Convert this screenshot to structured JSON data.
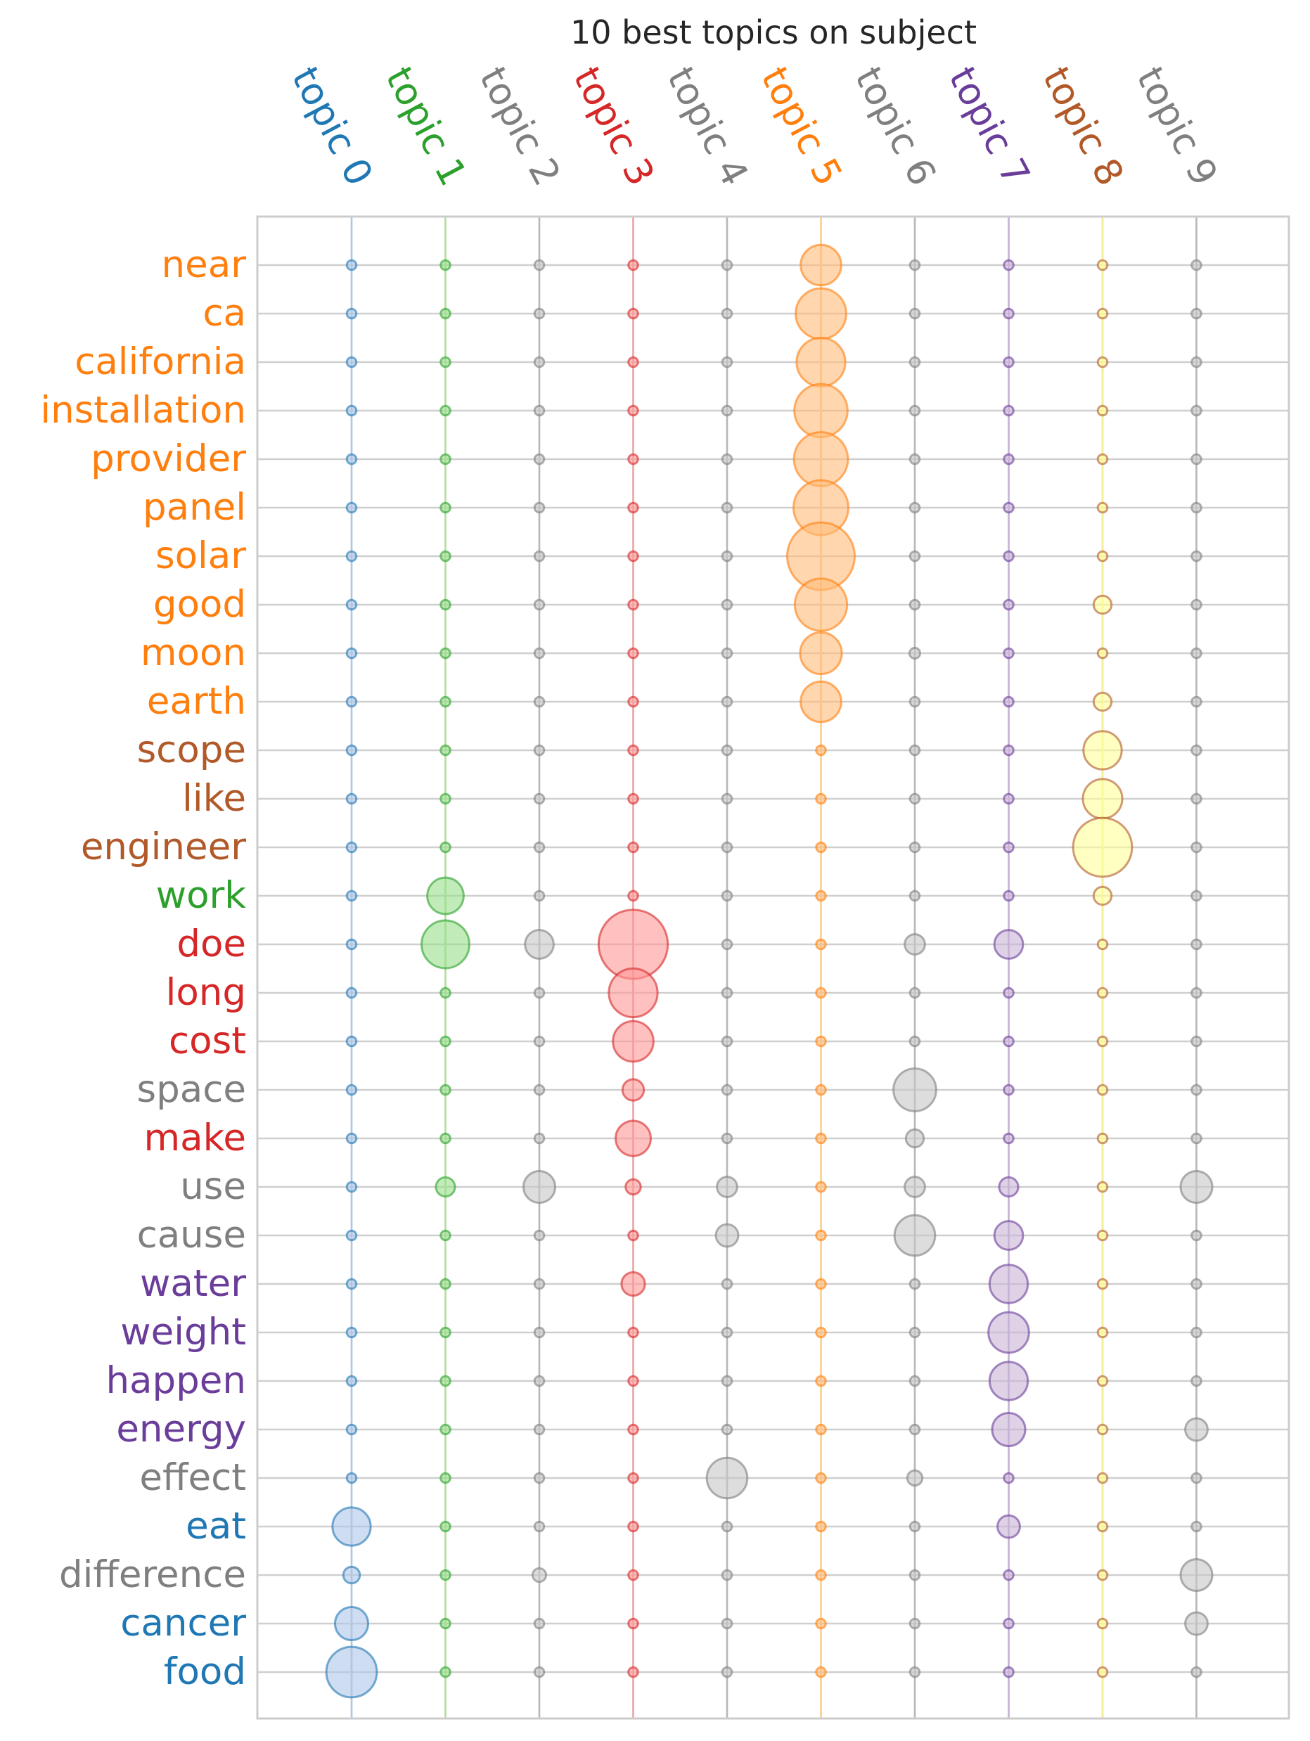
{
  "chart_data": {
    "type": "scatter",
    "title": "10 best topics on subject",
    "topics": [
      {
        "label": "topic 0",
        "color": "#1f77b4",
        "circle_color": "#aec7e8",
        "line_color": "#aec7e8"
      },
      {
        "label": "topic 1",
        "color": "#2ca02c",
        "circle_color": "#98df8a",
        "line_color": "#b2e09a"
      },
      {
        "label": "topic 2",
        "color": "#7f7f7f",
        "circle_color": "#c7c7c7",
        "line_color": "#b8b8b8"
      },
      {
        "label": "topic 3",
        "color": "#d62728",
        "circle_color": "#ff9896",
        "line_color": "#f2a4a4"
      },
      {
        "label": "topic 4",
        "color": "#7f7f7f",
        "circle_color": "#c7c7c7",
        "line_color": "#b8b8b8"
      },
      {
        "label": "topic 5",
        "color": "#ff7f0e",
        "circle_color": "#ffbb78",
        "line_color": "#ffcf8f"
      },
      {
        "label": "topic 6",
        "color": "#7f7f7f",
        "circle_color": "#c7c7c7",
        "line_color": "#b8b8b8"
      },
      {
        "label": "topic 7",
        "color": "#6a3d9a",
        "circle_color": "#cab2d6",
        "line_color": "#c4b3d6"
      },
      {
        "label": "topic 8",
        "color": "#b15928",
        "circle_color": "#ffff99",
        "line_color": "#f2ef99"
      },
      {
        "label": "topic 9",
        "color": "#7f7f7f",
        "circle_color": "#c7c7c7",
        "line_color": "#b8b8b8"
      }
    ],
    "words": [
      {
        "word": "near",
        "color": "#ff7f0e",
        "values": [
          0.02,
          0.02,
          0.02,
          0.02,
          0.02,
          0.36,
          0.02,
          0.02,
          0.02,
          0.02
        ]
      },
      {
        "word": "ca",
        "color": "#ff7f0e",
        "values": [
          0.02,
          0.02,
          0.02,
          0.02,
          0.02,
          0.56,
          0.02,
          0.02,
          0.02,
          0.02
        ]
      },
      {
        "word": "california",
        "color": "#ff7f0e",
        "values": [
          0.02,
          0.02,
          0.02,
          0.02,
          0.02,
          0.52,
          0.02,
          0.02,
          0.02,
          0.02
        ]
      },
      {
        "word": "installation",
        "color": "#ff7f0e",
        "values": [
          0.02,
          0.02,
          0.02,
          0.02,
          0.02,
          0.62,
          0.02,
          0.02,
          0.02,
          0.02
        ]
      },
      {
        "word": "provider",
        "color": "#ff7f0e",
        "values": [
          0.02,
          0.02,
          0.02,
          0.02,
          0.02,
          0.64,
          0.02,
          0.02,
          0.02,
          0.02
        ]
      },
      {
        "word": "panel",
        "color": "#ff7f0e",
        "values": [
          0.02,
          0.02,
          0.02,
          0.02,
          0.02,
          0.66,
          0.02,
          0.02,
          0.02,
          0.02
        ]
      },
      {
        "word": "solar",
        "color": "#ff7f0e",
        "values": [
          0.02,
          0.02,
          0.02,
          0.02,
          0.02,
          1.0,
          0.02,
          0.02,
          0.02,
          0.02
        ]
      },
      {
        "word": "good",
        "color": "#ff7f0e",
        "values": [
          0.02,
          0.02,
          0.02,
          0.02,
          0.02,
          0.6,
          0.02,
          0.02,
          0.07,
          0.02
        ]
      },
      {
        "word": "moon",
        "color": "#ff7f0e",
        "values": [
          0.02,
          0.02,
          0.02,
          0.02,
          0.02,
          0.38,
          0.025,
          0.02,
          0.02,
          0.02
        ]
      },
      {
        "word": "earth",
        "color": "#ff7f0e",
        "values": [
          0.02,
          0.02,
          0.02,
          0.02,
          0.02,
          0.36,
          0.02,
          0.02,
          0.07,
          0.02
        ]
      },
      {
        "word": "scope",
        "color": "#b15928",
        "values": [
          0.02,
          0.02,
          0.02,
          0.02,
          0.02,
          0.02,
          0.02,
          0.02,
          0.32,
          0.02
        ]
      },
      {
        "word": "like",
        "color": "#b15928",
        "values": [
          0.02,
          0.02,
          0.02,
          0.02,
          0.02,
          0.02,
          0.02,
          0.02,
          0.34,
          0.02
        ]
      },
      {
        "word": "engineer",
        "color": "#b15928",
        "values": [
          0.02,
          0.02,
          0.02,
          0.02,
          0.02,
          0.02,
          0.02,
          0.02,
          0.76,
          0.02
        ]
      },
      {
        "word": "work",
        "color": "#2ca02c",
        "values": [
          0.02,
          0.29,
          0.02,
          0.02,
          0.02,
          0.02,
          0.02,
          0.02,
          0.07,
          0.02
        ]
      },
      {
        "word": "doe",
        "color": "#d62728",
        "values": [
          0.02,
          0.5,
          0.18,
          1.05,
          0.02,
          0.02,
          0.09,
          0.18,
          0.02,
          0.02
        ]
      },
      {
        "word": "long",
        "color": "#d62728",
        "values": [
          0.02,
          0.02,
          0.02,
          0.52,
          0.02,
          0.02,
          0.02,
          0.02,
          0.02,
          0.02
        ]
      },
      {
        "word": "cost",
        "color": "#d62728",
        "values": [
          0.02,
          0.02,
          0.02,
          0.36,
          0.02,
          0.02,
          0.02,
          0.02,
          0.02,
          0.02
        ]
      },
      {
        "word": "space",
        "color": "#7f7f7f",
        "values": [
          0.02,
          0.02,
          0.02,
          0.1,
          0.02,
          0.02,
          0.4,
          0.02,
          0.02,
          0.02
        ]
      },
      {
        "word": "make",
        "color": "#d62728",
        "values": [
          0.02,
          0.02,
          0.02,
          0.27,
          0.02,
          0.02,
          0.07,
          0.02,
          0.02,
          0.02
        ]
      },
      {
        "word": "use",
        "color": "#7f7f7f",
        "values": [
          0.02,
          0.08,
          0.22,
          0.05,
          0.09,
          0.02,
          0.09,
          0.08,
          0.02,
          0.22
        ]
      },
      {
        "word": "cause",
        "color": "#7f7f7f",
        "values": [
          0.02,
          0.02,
          0.02,
          0.02,
          0.11,
          0.02,
          0.36,
          0.18,
          0.02,
          0.02
        ]
      },
      {
        "word": "water",
        "color": "#6a3d9a",
        "values": [
          0.02,
          0.02,
          0.02,
          0.12,
          0.02,
          0.02,
          0.02,
          0.32,
          0.02,
          0.02
        ]
      },
      {
        "word": "weight",
        "color": "#6a3d9a",
        "values": [
          0.02,
          0.02,
          0.02,
          0.02,
          0.02,
          0.02,
          0.02,
          0.36,
          0.02,
          0.02
        ]
      },
      {
        "word": "happen",
        "color": "#6a3d9a",
        "values": [
          0.02,
          0.02,
          0.02,
          0.02,
          0.02,
          0.02,
          0.02,
          0.32,
          0.02,
          0.02
        ]
      },
      {
        "word": "energy",
        "color": "#6a3d9a",
        "values": [
          0.02,
          0.02,
          0.02,
          0.02,
          0.02,
          0.02,
          0.02,
          0.24,
          0.02,
          0.11
        ]
      },
      {
        "word": "effect",
        "color": "#7f7f7f",
        "values": [
          0.02,
          0.02,
          0.02,
          0.02,
          0.36,
          0.02,
          0.05,
          0.02,
          0.02,
          0.02
        ]
      },
      {
        "word": "eat",
        "color": "#1f77b4",
        "values": [
          0.32,
          0.02,
          0.02,
          0.02,
          0.02,
          0.02,
          0.02,
          0.11,
          0.02,
          0.02
        ]
      },
      {
        "word": "difference",
        "color": "#7f7f7f",
        "values": [
          0.06,
          0.02,
          0.04,
          0.02,
          0.02,
          0.02,
          0.02,
          0.02,
          0.02,
          0.22
        ]
      },
      {
        "word": "cancer",
        "color": "#1f77b4",
        "values": [
          0.24,
          0.02,
          0.02,
          0.02,
          0.02,
          0.02,
          0.02,
          0.02,
          0.02,
          0.11
        ]
      },
      {
        "word": "food",
        "color": "#1f77b4",
        "values": [
          0.56,
          0.02,
          0.02,
          0.02,
          0.02,
          0.02,
          0.02,
          0.02,
          0.02,
          0.02
        ]
      }
    ],
    "grid": true
  }
}
